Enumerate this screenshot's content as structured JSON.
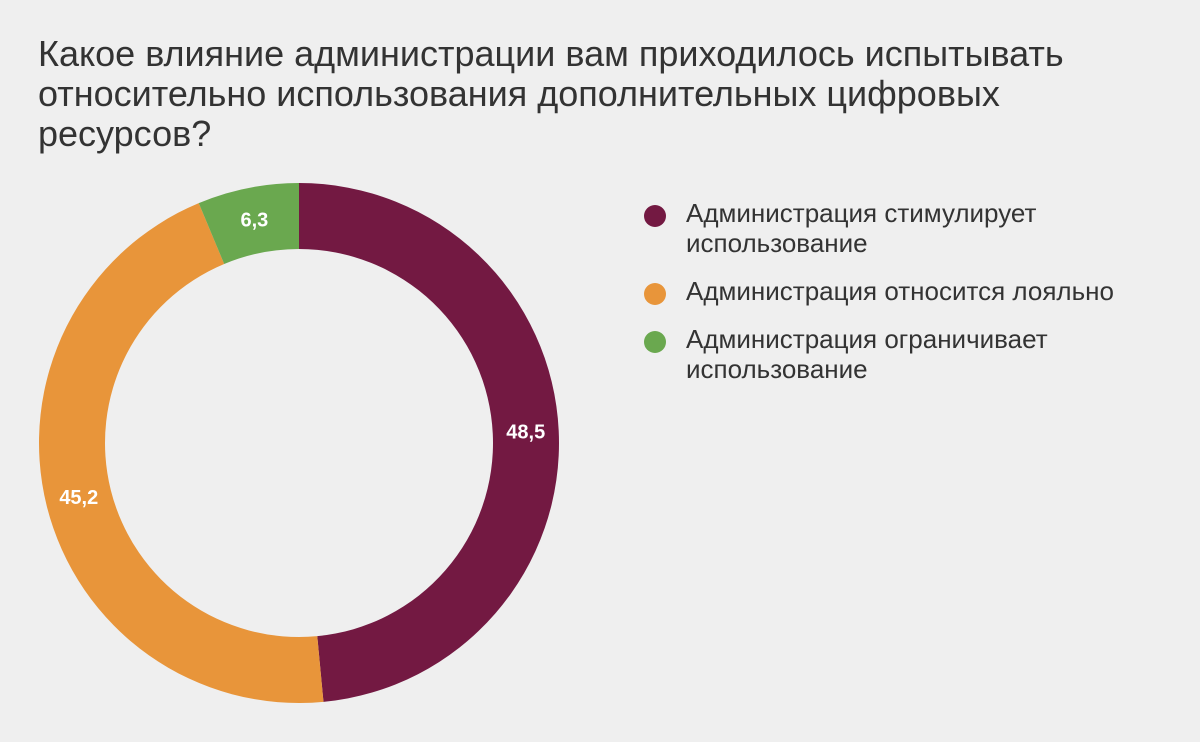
{
  "chart_data": {
    "type": "pie",
    "title": "Какое влияние администрации вам приходилось испытывать относительно использования дополнительных цифровых ресурсов?",
    "slices": [
      {
        "label": "Администрация стимулирует использование",
        "value": 48.5,
        "value_label": "48,5",
        "color": "#731942"
      },
      {
        "label": "Администрация относится лояльно",
        "value": 45.2,
        "value_label": "45,2",
        "color": "#e8953a"
      },
      {
        "label": "Администрация ограничивает использование",
        "value": 6.3,
        "value_label": "6,3",
        "color": "#6aa84f"
      }
    ],
    "donut": true,
    "start": "top",
    "direction": "clockwise",
    "legend_position": "right"
  }
}
